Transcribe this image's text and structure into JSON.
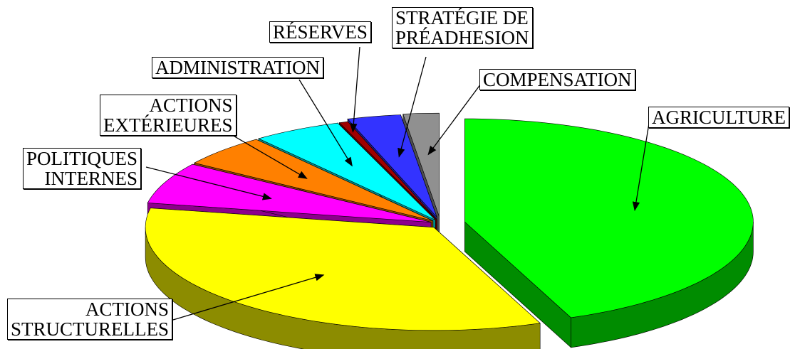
{
  "chart_data": {
    "type": "pie3d",
    "categories": [
      "AGRICULTURE",
      "ACTIONS\nSTRUCTURELLES",
      "POLITIQUES\nINTERNES",
      "ACTIONS\nEXTÉRIEURES",
      "ADMINISTRATION",
      "RÉSERVES",
      "STRATÉGIE DE\nPRÉADHESION",
      "COMPENSATION"
    ],
    "values": [
      44,
      34,
      6.5,
      5,
      5,
      0.5,
      3,
      2
    ],
    "colors": [
      "#00ff00",
      "#ffff00",
      "#ff00ff",
      "#ff8000",
      "#00ffff",
      "#a00000",
      "#3333ff",
      "#909090"
    ]
  }
}
